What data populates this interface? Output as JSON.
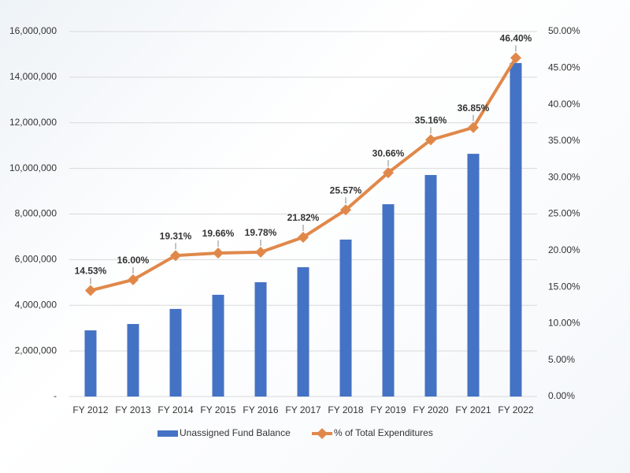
{
  "chart_data": {
    "type": "bar-line",
    "categories": [
      "FY 2012",
      "FY 2013",
      "FY 2014",
      "FY 2015",
      "FY 2016",
      "FY 2017",
      "FY 2018",
      "FY 2019",
      "FY 2020",
      "FY 2021",
      "FY 2022"
    ],
    "series": [
      {
        "name": "Unassigned Fund Balance",
        "type": "bar",
        "color": "#4472c4",
        "values": [
          2900000,
          3180000,
          3840000,
          4460000,
          5010000,
          5670000,
          6880000,
          8430000,
          9710000,
          10640000,
          14620000
        ]
      },
      {
        "name": "% of Total Expenditures",
        "type": "line",
        "axis": "y2",
        "color": "#e0884a",
        "values": [
          14.53,
          16.0,
          19.31,
          19.66,
          19.78,
          21.82,
          25.57,
          30.66,
          35.16,
          36.85,
          46.4
        ],
        "value_labels": [
          "14.53%",
          "16.00%",
          "19.31%",
          "19.66%",
          "19.78%",
          "21.82%",
          "25.57%",
          "30.66%",
          "35.16%",
          "36.85%",
          "46.40%"
        ]
      }
    ],
    "ylim": [
      0,
      16000000
    ],
    "yticks": [
      {
        "value": 0,
        "label": "-"
      },
      {
        "value": 2000000,
        "label": "2,000,000"
      },
      {
        "value": 4000000,
        "label": "4,000,000"
      },
      {
        "value": 6000000,
        "label": "6,000,000"
      },
      {
        "value": 8000000,
        "label": "8,000,000"
      },
      {
        "value": 10000000,
        "label": "10,000,000"
      },
      {
        "value": 12000000,
        "label": "12,000,000"
      },
      {
        "value": 14000000,
        "label": "14,000,000"
      },
      {
        "value": 16000000,
        "label": "16,000,000"
      }
    ],
    "y2lim": [
      0,
      50
    ],
    "y2ticks": [
      {
        "value": 0,
        "label": "0.00%"
      },
      {
        "value": 5,
        "label": "5.00%"
      },
      {
        "value": 10,
        "label": "10.00%"
      },
      {
        "value": 15,
        "label": "15.00%"
      },
      {
        "value": 20,
        "label": "20.00%"
      },
      {
        "value": 25,
        "label": "25.00%"
      },
      {
        "value": 30,
        "label": "30.00%"
      },
      {
        "value": 35,
        "label": "35.00%"
      },
      {
        "value": 40,
        "label": "40.00%"
      },
      {
        "value": 45,
        "label": "45.00%"
      },
      {
        "value": 50,
        "label": "50.00%"
      }
    ],
    "grid": true,
    "legend": "bottom"
  }
}
